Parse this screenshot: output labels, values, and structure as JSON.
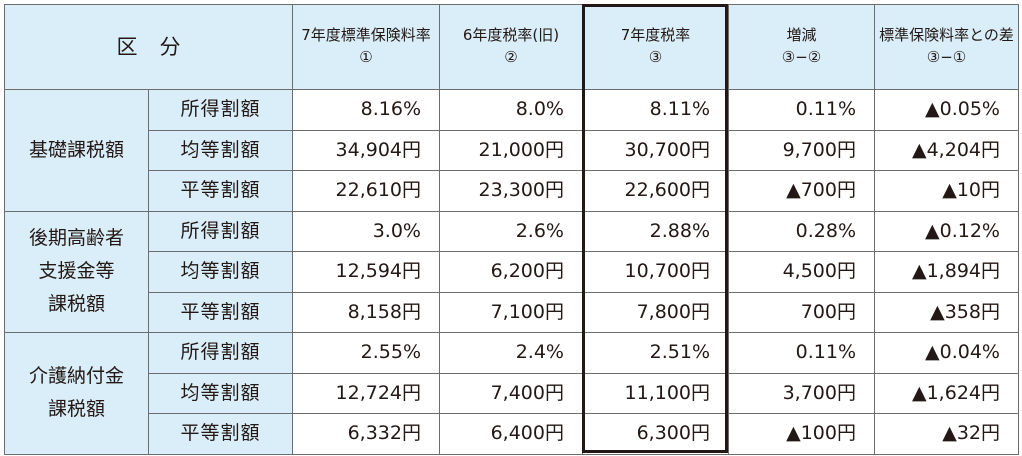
{
  "header": {
    "kubun": "区分",
    "col1": {
      "line1": "7年度標準保険料率",
      "line2": "①"
    },
    "col2": {
      "line1": "6年度税率(旧)",
      "line2": "②"
    },
    "col3": {
      "line1": "7年度税率",
      "line2": "③"
    },
    "col4": {
      "line1": "増減",
      "line2": "③−②"
    },
    "col5": {
      "line1": "標準保険料率との差",
      "line2": "③−①"
    }
  },
  "sub_labels": {
    "income": "所得割額",
    "per_capita": "均等割額",
    "household": "平等割額"
  },
  "groups": [
    {
      "name_lines": [
        "基礎課税額"
      ],
      "rows": [
        {
          "label": "所得割額",
          "values": [
            "8.16%",
            "8.0%",
            "8.11%",
            "0.11%",
            "▲0.05%"
          ]
        },
        {
          "label": "均等割額",
          "values": [
            "34,904円",
            "21,000円",
            "30,700円",
            "9,700円",
            "▲4,204円"
          ]
        },
        {
          "label": "平等割額",
          "values": [
            "22,610円",
            "23,300円",
            "22,600円",
            "▲700円",
            "▲10円"
          ]
        }
      ]
    },
    {
      "name_lines": [
        "後期高齢者",
        "支援金等",
        "課税額"
      ],
      "rows": [
        {
          "label": "所得割額",
          "values": [
            "3.0%",
            "2.6%",
            "2.88%",
            "0.28%",
            "▲0.12%"
          ]
        },
        {
          "label": "均等割額",
          "values": [
            "12,594円",
            "6,200円",
            "10,700円",
            "4,500円",
            "▲1,894円"
          ]
        },
        {
          "label": "平等割額",
          "values": [
            "8,158円",
            "7,100円",
            "7,800円",
            "700円",
            "▲358円"
          ]
        }
      ]
    },
    {
      "name_lines": [
        "介護納付金",
        "課税額"
      ],
      "rows": [
        {
          "label": "所得割額",
          "values": [
            "2.55%",
            "2.4%",
            "2.51%",
            "0.11%",
            "▲0.04%"
          ]
        },
        {
          "label": "均等割額",
          "values": [
            "12,724円",
            "7,400円",
            "11,100円",
            "3,700円",
            "▲1,624円"
          ]
        },
        {
          "label": "平等割額",
          "values": [
            "6,332円",
            "6,400円",
            "6,300円",
            "▲100円",
            "▲32円"
          ]
        }
      ]
    }
  ]
}
